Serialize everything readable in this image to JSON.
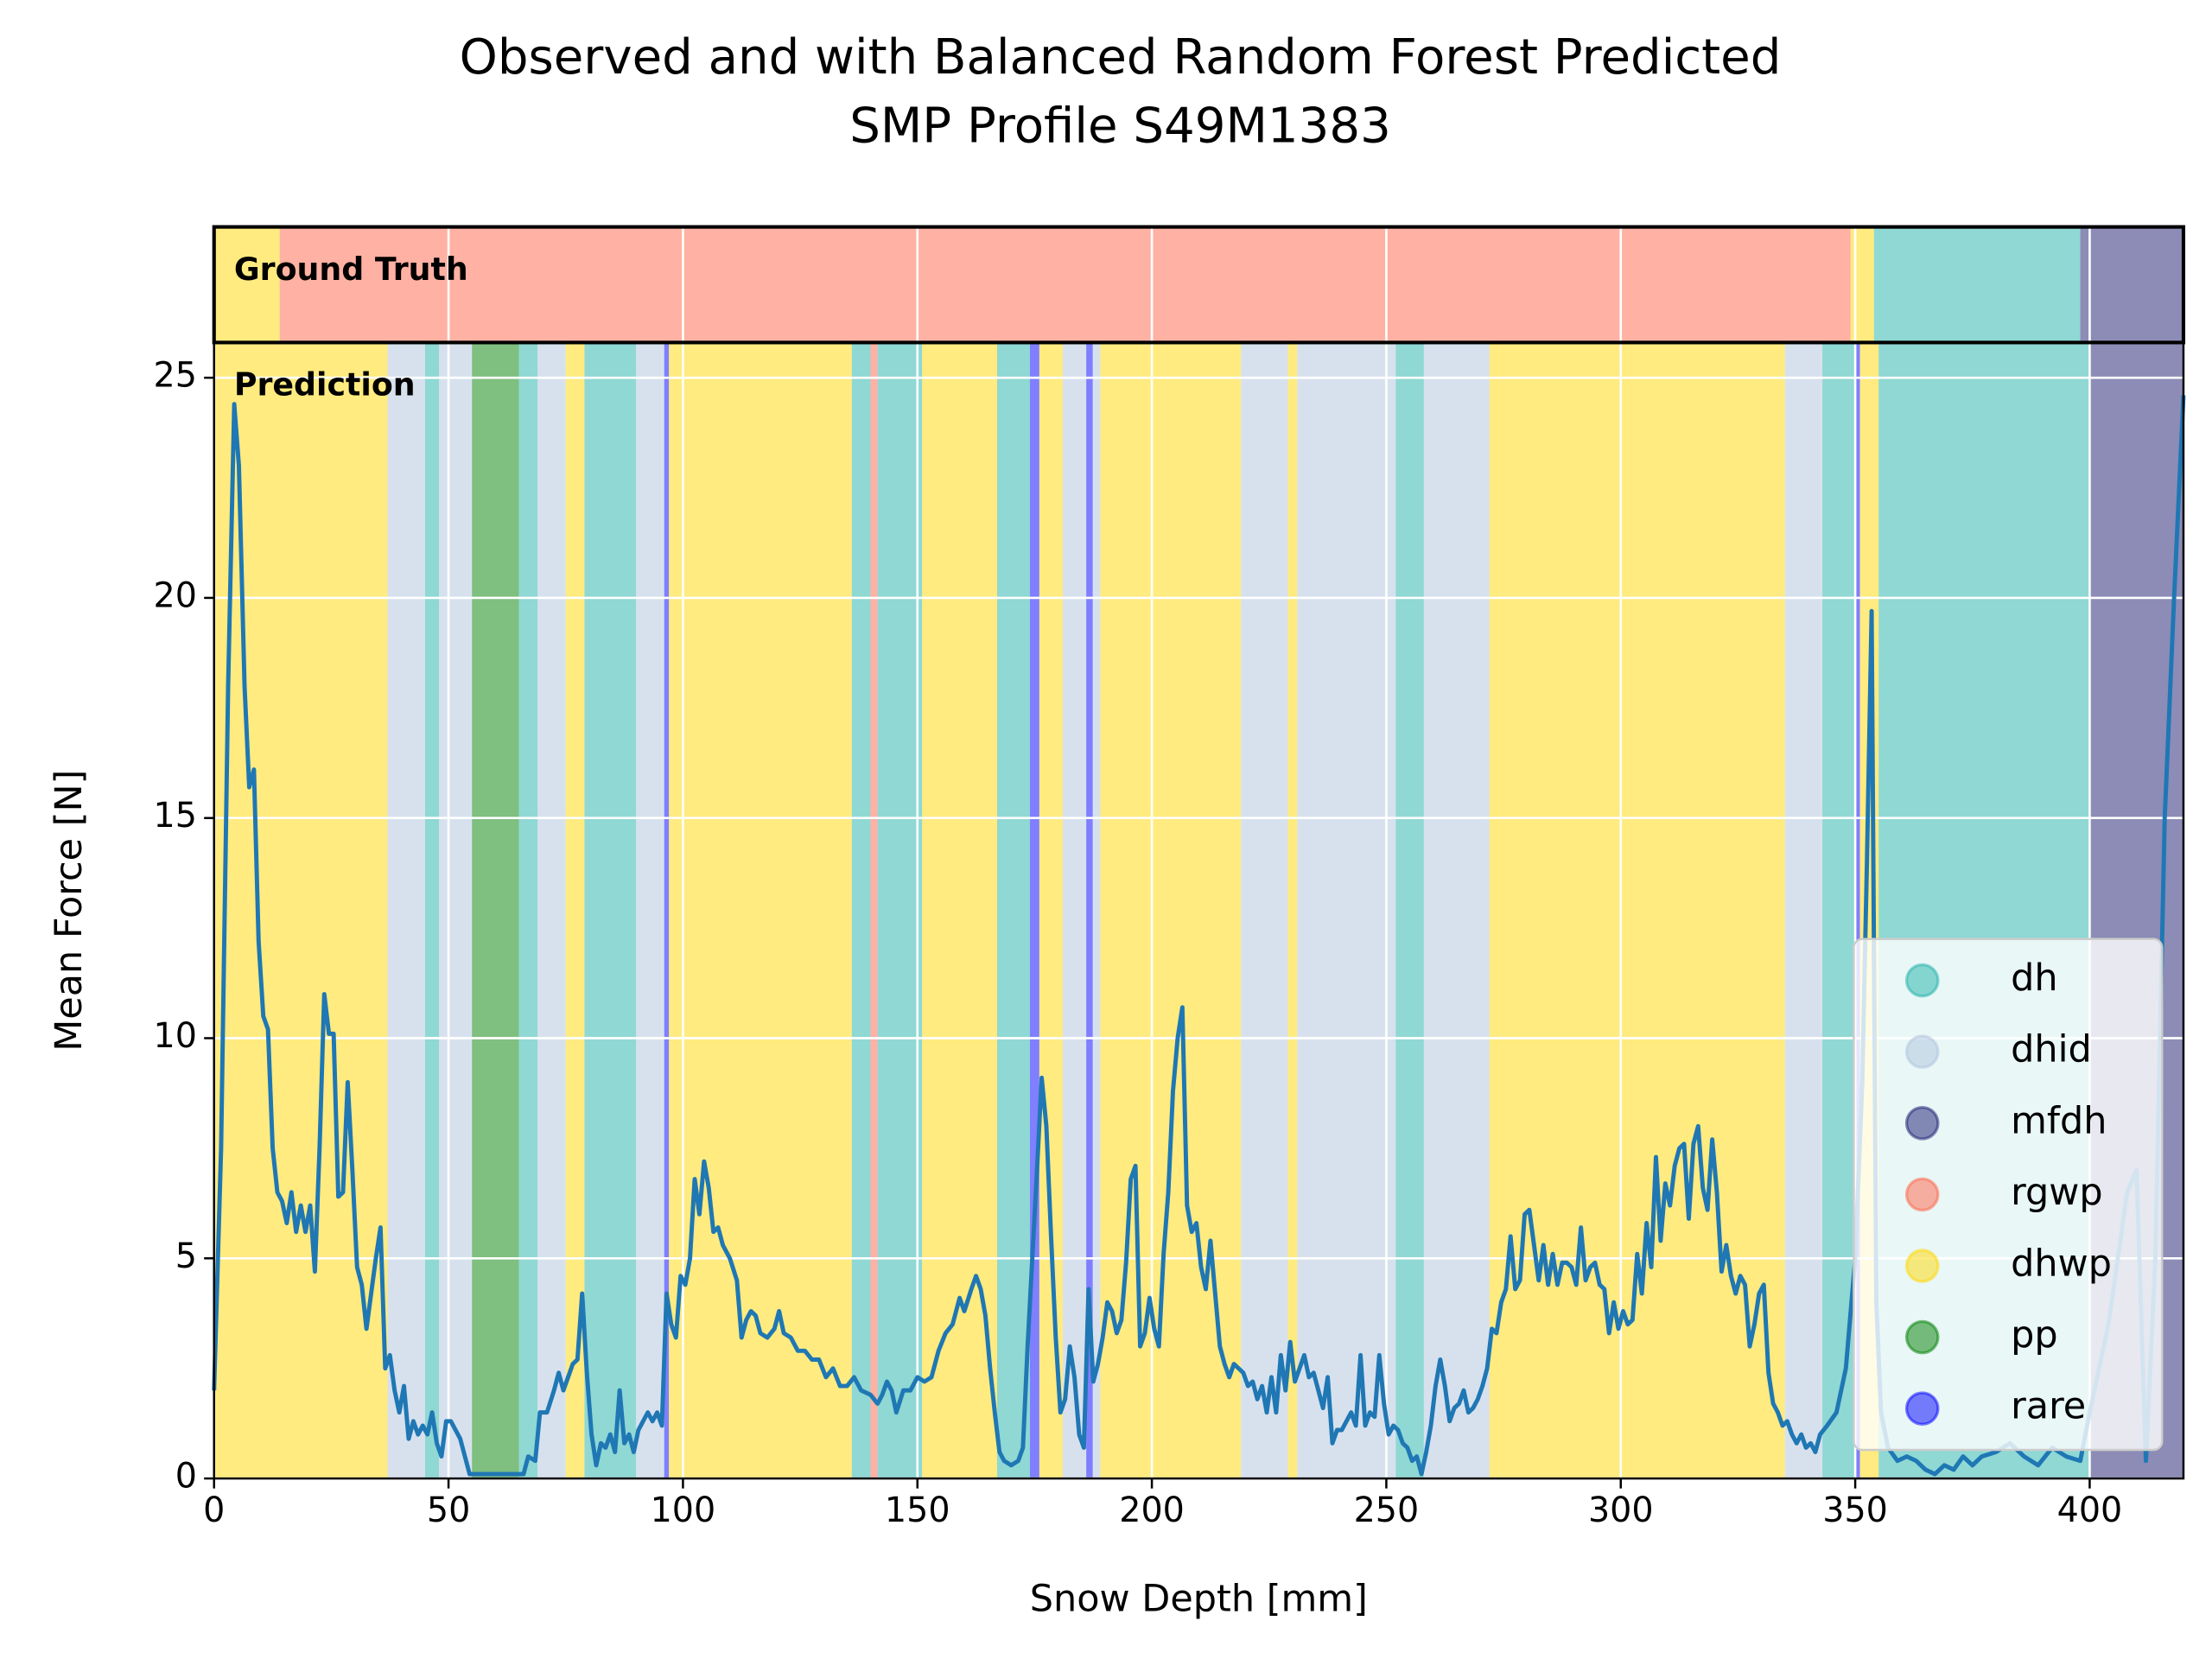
{
  "chart_data": {
    "type": "line",
    "title": "Observed and with Balanced Random Forest Predicted",
    "subtitle": "SMP Profile S49M1383",
    "xlabel": "Snow Depth [mm]",
    "ylabel": "Mean Force [N]",
    "xlim": [
      0,
      420
    ],
    "ylim": [
      0,
      25.8
    ],
    "xticks": [
      0,
      50,
      100,
      150,
      200,
      250,
      300,
      350,
      400
    ],
    "yticks": [
      0,
      5,
      10,
      15,
      20,
      25
    ],
    "grid": true,
    "color": "#1f77b4",
    "legend": "lower right",
    "alpha": 0.5,
    "classes": [
      {
        "name": "dh",
        "color": "#20b2aa"
      },
      {
        "name": "dhid",
        "color": "#b0c4de"
      },
      {
        "name": "mfdh",
        "color": "#191970"
      },
      {
        "name": "rgwp",
        "color": "#ff6347"
      },
      {
        "name": "dhwp",
        "color": "#ffd700"
      },
      {
        "name": "pp",
        "color": "#008000"
      },
      {
        "name": "rare",
        "color": "#0000ff"
      }
    ],
    "ground_truth": {
      "label": "Ground Truth",
      "segments": [
        {
          "start": 0,
          "end": 14,
          "class": 4
        },
        {
          "start": 14,
          "end": 349,
          "class": 3
        },
        {
          "start": 349,
          "end": 354,
          "class": 4
        },
        {
          "start": 354,
          "end": 398,
          "class": 0
        },
        {
          "start": 398,
          "end": 420,
          "class": 2
        }
      ]
    },
    "prediction": {
      "label": "Prediction",
      "segments": [
        {
          "start": 0,
          "end": 37,
          "class": 4
        },
        {
          "start": 37,
          "end": 45,
          "class": 1
        },
        {
          "start": 45,
          "end": 48,
          "class": 0
        },
        {
          "start": 48,
          "end": 55,
          "class": 1
        },
        {
          "start": 55,
          "end": 65,
          "class": 5
        },
        {
          "start": 65,
          "end": 69,
          "class": 0
        },
        {
          "start": 69,
          "end": 75,
          "class": 1
        },
        {
          "start": 75,
          "end": 79,
          "class": 4
        },
        {
          "start": 79,
          "end": 90,
          "class": 0
        },
        {
          "start": 90,
          "end": 96,
          "class": 1
        },
        {
          "start": 96,
          "end": 97,
          "class": 6
        },
        {
          "start": 97,
          "end": 136,
          "class": 4
        },
        {
          "start": 136,
          "end": 140,
          "class": 0
        },
        {
          "start": 140,
          "end": 141.5,
          "class": 3
        },
        {
          "start": 141.5,
          "end": 151,
          "class": 0
        },
        {
          "start": 151,
          "end": 167,
          "class": 4
        },
        {
          "start": 167,
          "end": 174,
          "class": 0
        },
        {
          "start": 174,
          "end": 176,
          "class": 6
        },
        {
          "start": 176,
          "end": 181,
          "class": 4
        },
        {
          "start": 181,
          "end": 186,
          "class": 1
        },
        {
          "start": 186,
          "end": 187.4,
          "class": 6
        },
        {
          "start": 187.4,
          "end": 189,
          "class": 1
        },
        {
          "start": 189,
          "end": 219,
          "class": 4
        },
        {
          "start": 219,
          "end": 229,
          "class": 1
        },
        {
          "start": 229,
          "end": 231,
          "class": 4
        },
        {
          "start": 231,
          "end": 252,
          "class": 1
        },
        {
          "start": 252,
          "end": 258,
          "class": 0
        },
        {
          "start": 258,
          "end": 272,
          "class": 1
        },
        {
          "start": 272,
          "end": 335,
          "class": 4
        },
        {
          "start": 335,
          "end": 343,
          "class": 1
        },
        {
          "start": 343,
          "end": 350,
          "class": 0
        },
        {
          "start": 350,
          "end": 351,
          "class": 6
        },
        {
          "start": 351,
          "end": 355,
          "class": 4
        },
        {
          "start": 355,
          "end": 400,
          "class": 0
        },
        {
          "start": 400,
          "end": 420,
          "class": 2
        }
      ]
    },
    "x": [
      0,
      1.5,
      3,
      4.3,
      5.3,
      6.5,
      7.5,
      8.5,
      9.5,
      10.5,
      11.5,
      12.5,
      13.5,
      14.5,
      15.5,
      16.5,
      17.5,
      18.5,
      19.5,
      20.5,
      21.5,
      22.5,
      23.5,
      24.5,
      25.5,
      26.5,
      27.5,
      28.5,
      29.5,
      30.5,
      31.5,
      32.5,
      33.5,
      34.5,
      35.5,
      36.5,
      37.5,
      38.5,
      39.5,
      40.5,
      41.5,
      42.5,
      43.5,
      44.5,
      45.5,
      46.5,
      47.5,
      48.5,
      49.5,
      50.5,
      51.5,
      52.5,
      53.5,
      54.5,
      56,
      60,
      64,
      66,
      67,
      68.5,
      69.5,
      71,
      72.5,
      73.5,
      74.5,
      75.5,
      76.5,
      77.5,
      78.5,
      79.5,
      80.5,
      81.5,
      82.5,
      83.5,
      84.5,
      85.5,
      86.5,
      87.5,
      88.5,
      89.5,
      90.5,
      91.5,
      92.5,
      93.5,
      94.5,
      95.5,
      96.5,
      97.5,
      98.5,
      99.5,
      100.5,
      101.5,
      102.5,
      103.5,
      104.5,
      105.5,
      106.5,
      107.5,
      108.5,
      110,
      111.5,
      112.5,
      113.5,
      114.5,
      115.5,
      116.5,
      118,
      119.5,
      120.5,
      121.5,
      123,
      124.5,
      126,
      127.5,
      129,
      130.5,
      132,
      133.5,
      135,
      136.5,
      138,
      140,
      141.5,
      142.5,
      143.5,
      144.5,
      145.5,
      147,
      148.5,
      150,
      151.5,
      153,
      154.5,
      156,
      157.5,
      159,
      160,
      161.5,
      162.5,
      163.5,
      164.5,
      165.5,
      166.5,
      167.5,
      168.5,
      170,
      171.5,
      172.5,
      173.5,
      174.5,
      175.5,
      176.5,
      177.5,
      178.5,
      179.5,
      180.5,
      181.5,
      182.5,
      183.5,
      184.5,
      185.5,
      186.5,
      187.5,
      188.5,
      189.5,
      190.5,
      191.5,
      192.5,
      193.5,
      194.5,
      195.5,
      196.5,
      197.5,
      198.5,
      199.5,
      200.5,
      201.5,
      202.5,
      203.5,
      204.5,
      205.5,
      206.5,
      207.5,
      208.5,
      209.5,
      210.5,
      211.5,
      212.5,
      213.5,
      214.5,
      215.5,
      216.5,
      217.5,
      218.5,
      219.5,
      220.5,
      221.5,
      222.5,
      223.5,
      224.5,
      225.5,
      226.5,
      227.5,
      228.5,
      229.5,
      230.5,
      231.5,
      232.5,
      233.5,
      234.5,
      235.5,
      236.5,
      237.5,
      238.5,
      239.5,
      240.5,
      241.5,
      242.5,
      243.5,
      244.5,
      245.5,
      246.5,
      247.5,
      248.5,
      249.5,
      250.5,
      251.5,
      252.5,
      253.5,
      254.5,
      255.5,
      256.5,
      257.5,
      258.5,
      259.5,
      260.5,
      261.5,
      262.5,
      263.5,
      264.5,
      265.5,
      266.5,
      267.5,
      268.5,
      269.5,
      270.5,
      271.5,
      272.5,
      273.5,
      274.5,
      275.5,
      276.5,
      277.5,
      278.5,
      279.5,
      280.5,
      281.5,
      282.5,
      283.5,
      284.5,
      285.5,
      286.5,
      287.5,
      288.5,
      289.5,
      290.5,
      291.5,
      292.5,
      293.5,
      294.5,
      295.5,
      296.5,
      297.5,
      298.5,
      299.5,
      300.5,
      301.5,
      302.5,
      303.5,
      304.5,
      305.5,
      306.5,
      307.5,
      308.5,
      309.5,
      310.5,
      311.5,
      312.5,
      313.5,
      314.5,
      315.5,
      316.5,
      317.5,
      318.5,
      319.5,
      320.5,
      321.5,
      322.5,
      323.5,
      324.5,
      325.5,
      326.5,
      327.5,
      328.5,
      329.5,
      330.5,
      331.5,
      332.5,
      333.5,
      334.5,
      335.5,
      336.5,
      337.5,
      338.5,
      339.5,
      340.5,
      341.5,
      342.5,
      344,
      346,
      348,
      350,
      351.5,
      352.5,
      353.5,
      354.5,
      355.5,
      357,
      359,
      361,
      363,
      365,
      367,
      369,
      371,
      373,
      375,
      377,
      380,
      383,
      386,
      389,
      392,
      395,
      398,
      400,
      402,
      404,
      406,
      408,
      410,
      412,
      414,
      416,
      418,
      420
    ],
    "values": [
      2,
      7.5,
      18,
      24.4,
      23,
      18,
      15.7,
      16.1,
      12.2,
      10.5,
      10.2,
      7.5,
      6.5,
      6.3,
      5.8,
      6.5,
      5.6,
      6.2,
      5.6,
      6.2,
      4.7,
      7.5,
      11,
      10.1,
      10.1,
      6.4,
      6.5,
      9,
      7,
      4.8,
      4.4,
      3.4,
      4.2,
      5,
      5.7,
      2.5,
      2.8,
      2,
      1.5,
      2.1,
      0.9,
      1.3,
      1,
      1.2,
      1,
      1.5,
      0.8,
      0.5,
      1.3,
      1.3,
      1.1,
      0.9,
      0.5,
      0.1,
      0.1,
      0.1,
      0.1,
      0.1,
      0.5,
      0.4,
      1.5,
      1.5,
      2,
      2.4,
      2,
      2.3,
      2.6,
      2.7,
      4.2,
      2.4,
      1,
      0.3,
      0.8,
      0.7,
      1,
      0.6,
      2,
      0.8,
      1,
      0.6,
      1.1,
      1.3,
      1.5,
      1.3,
      1.5,
      1.2,
      4.2,
      3.5,
      3.2,
      4.6,
      4.4,
      5,
      6.8,
      6,
      7.2,
      6.6,
      5.6,
      5.7,
      5.3,
      5,
      4.5,
      3.2,
      3.6,
      3.8,
      3.7,
      3.3,
      3.2,
      3.4,
      3.8,
      3.3,
      3.2,
      2.9,
      2.9,
      2.7,
      2.7,
      2.3,
      2.5,
      2.1,
      2.1,
      2.3,
      2,
      1.9,
      1.7,
      1.9,
      2.2,
      2,
      1.5,
      2,
      2,
      2.3,
      2.2,
      2.3,
      2.9,
      3.3,
      3.5,
      4.1,
      3.8,
      4.3,
      4.6,
      4.3,
      3.7,
      2.5,
      1.5,
      0.6,
      0.4,
      0.3,
      0.4,
      0.7,
      3,
      5,
      7,
      9.1,
      8,
      5.5,
      3.2,
      1.5,
      1.8,
      3,
      2.3,
      1,
      0.7,
      4.3,
      2.2,
      2.6,
      3.2,
      4,
      3.8,
      3.3,
      3.6,
      4.9,
      6.8,
      7.1,
      3,
      3.3,
      4.1,
      3.4,
      3,
      5.1,
      6.5,
      8.8,
      10,
      10.7,
      6.2,
      5.6,
      5.8,
      4.8,
      4.3,
      5.4,
      4.2,
      3,
      2.6,
      2.3,
      2.6,
      2.5,
      2.4,
      2.1,
      2.2,
      1.8,
      2.1,
      1.5,
      2.3,
      1.5,
      2.8,
      2,
      3.1,
      2.2,
      2.5,
      2.8,
      2.3,
      2.4,
      2,
      1.6,
      2.3,
      0.8,
      1.1,
      1.1,
      1.3,
      1.5,
      1.2,
      2.8,
      1.2,
      1.5,
      1.4,
      2.8,
      1.7,
      1,
      1.2,
      1.1,
      0.8,
      0.7,
      0.4,
      0.5,
      0.1,
      0.6,
      1.2,
      2.1,
      2.7,
      2.1,
      1.3,
      1.6,
      1.7,
      2,
      1.5,
      1.6,
      1.8,
      2.1,
      2.5,
      3.4,
      3.3,
      4,
      4.3,
      5.5,
      4.3,
      4.5,
      6,
      6.1,
      5.3,
      4.5,
      5.3,
      4.4,
      5.1,
      4.4,
      4.9,
      4.9,
      4.8,
      4.4,
      5.7,
      4.5,
      4.8,
      4.9,
      4.4,
      4.3,
      3.3,
      4,
      3.4,
      3.8,
      3.5,
      3.6,
      5.1,
      4.2,
      5.8,
      4.8,
      7.3,
      5.4,
      6.7,
      6.2,
      7.1,
      7.5,
      7.6,
      5.9,
      7.6,
      8,
      6.6,
      6.1,
      7.7,
      6.5,
      4.7,
      5.3,
      4.6,
      4.2,
      4.6,
      4.4,
      3,
      3.5,
      4.2,
      4.4,
      2.4,
      1.7,
      1.5,
      1.2,
      1.3,
      1,
      0.8,
      1,
      0.7,
      0.8,
      0.6,
      1,
      1.2,
      1.5,
      2.5,
      5,
      9,
      14,
      19.7,
      4,
      1.5,
      0.7,
      0.4,
      0.5,
      0.4,
      0.2,
      0.1,
      0.3,
      0.2,
      0.5,
      0.3,
      0.5,
      0.6,
      0.8,
      0.5,
      0.3,
      0.7,
      0.5,
      0.4,
      1.5,
      2.5,
      3.5,
      5,
      6.5,
      7,
      0.4,
      5,
      15,
      20,
      24.6
    ]
  }
}
